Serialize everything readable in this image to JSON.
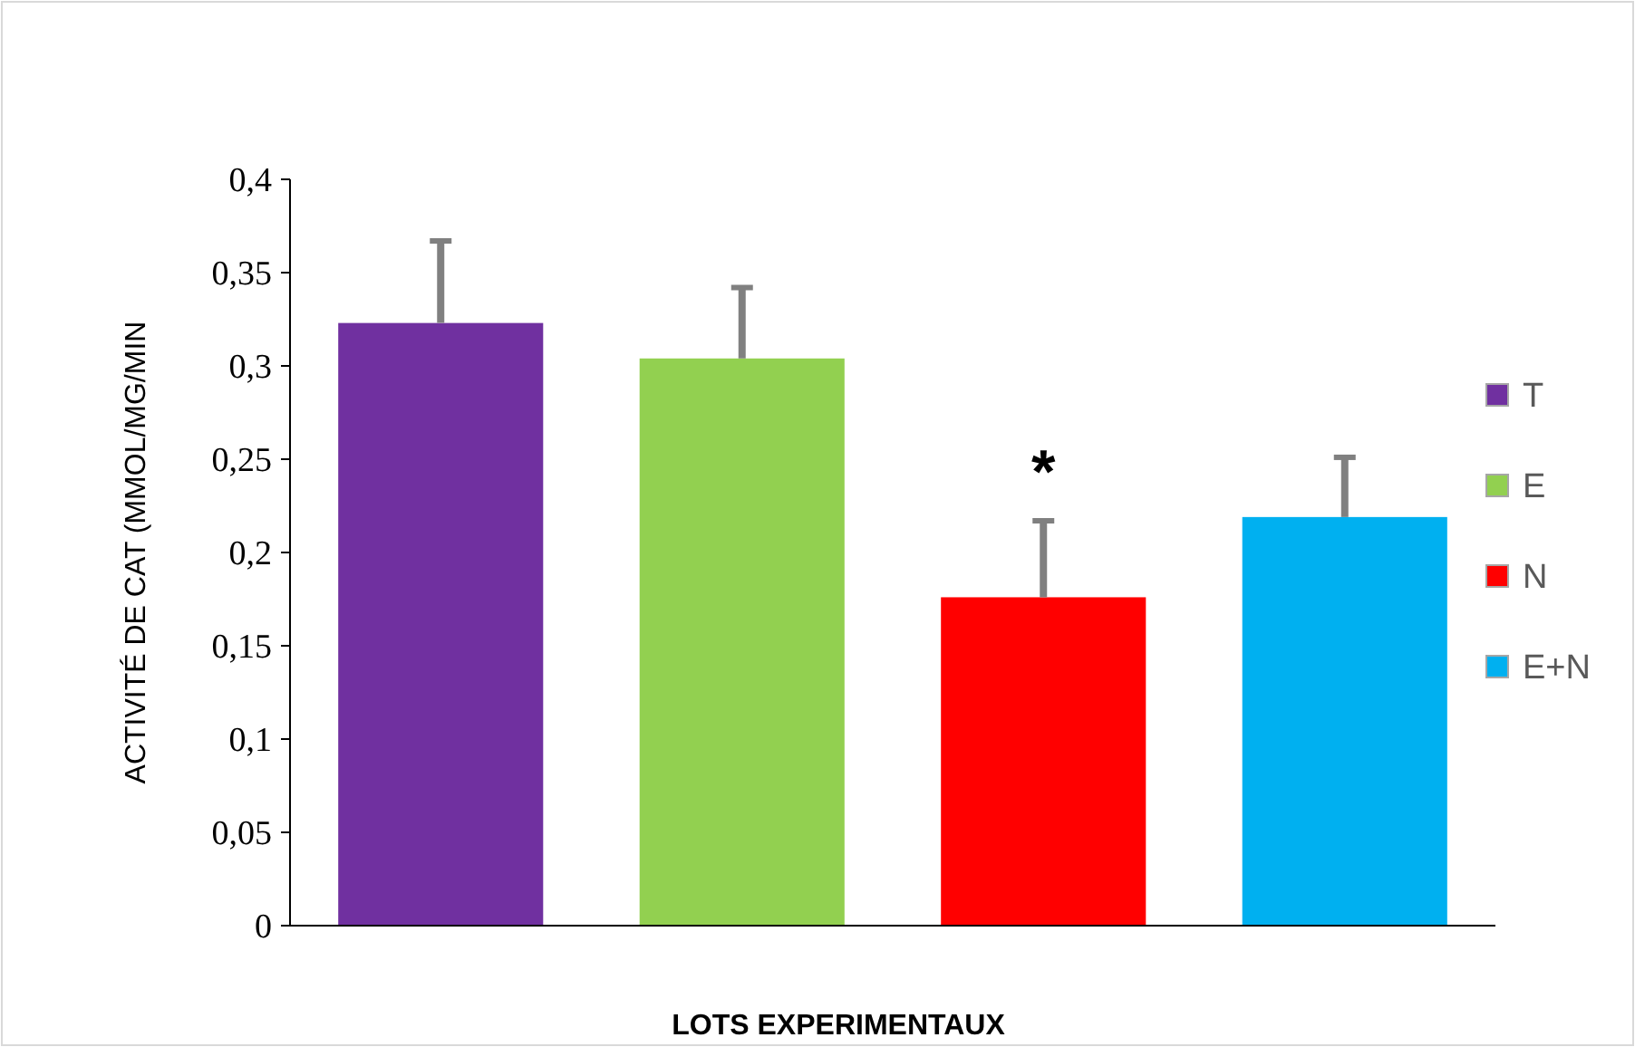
{
  "chart_data": {
    "type": "bar",
    "xlabel": "LOTS EXPERIMENTAUX",
    "ylabel": "ACTIVITÉ DE CAT  (MMOL/MG/MIN",
    "categories": [
      null,
      null,
      null,
      null
    ],
    "stacked": true,
    "series": [
      {
        "name": "T",
        "color": "#7030a0",
        "values": [
          0.323,
          null,
          null,
          null
        ],
        "errors": [
          [
            0.323,
            0.367
          ],
          null,
          null,
          null
        ]
      },
      {
        "name": "E",
        "color": "#92d050",
        "values": [
          null,
          0.304,
          null,
          null
        ],
        "errors": [
          null,
          [
            0.304,
            0.342
          ],
          null,
          null
        ]
      },
      {
        "name": "N",
        "color": "#ff0000",
        "values": [
          null,
          null,
          0.176,
          null
        ],
        "errors": [
          null,
          null,
          [
            0.176,
            0.217
          ],
          null
        ]
      },
      {
        "name": "E+N",
        "color": "#00b0f0",
        "values": [
          null,
          null,
          null,
          0.219
        ],
        "errors": [
          null,
          null,
          null,
          [
            0.219,
            0.251
          ]
        ]
      }
    ],
    "ylim": [
      0,
      0.4
    ],
    "yticks": [
      0,
      {
        "value": 0.05,
        "label": "0,05"
      },
      {
        "value": 0.1,
        "label": "0,1"
      },
      {
        "value": 0.15,
        "label": "0,15"
      },
      {
        "value": 0.2,
        "label": "0,2"
      },
      {
        "value": 0.25,
        "label": "0,25"
      },
      {
        "value": 0.3,
        "label": "0,3"
      },
      {
        "value": 0.35,
        "label": "0,35"
      },
      {
        "value": 0.4,
        "label": "0,4"
      }
    ],
    "annotations": [
      "*"
    ],
    "legend": "right",
    "tick_labels": "y",
    "grid": false
  }
}
